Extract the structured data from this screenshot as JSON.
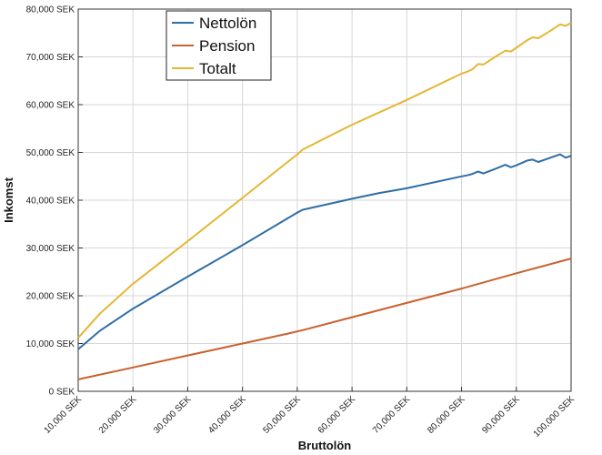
{
  "chart_data": {
    "type": "line",
    "title": "",
    "xlabel": "Bruttolön",
    "ylabel": "Inkomst",
    "xlim": [
      10000,
      100000
    ],
    "ylim": [
      0,
      80000
    ],
    "grid": true,
    "legend_position": "top-left",
    "x_ticks": [
      {
        "value": 10000,
        "label": "10,000 SEK"
      },
      {
        "value": 20000,
        "label": "20,000 SEK"
      },
      {
        "value": 30000,
        "label": "30,000 SEK"
      },
      {
        "value": 40000,
        "label": "40,000 SEK"
      },
      {
        "value": 50000,
        "label": "50,000 SEK"
      },
      {
        "value": 60000,
        "label": "60,000 SEK"
      },
      {
        "value": 70000,
        "label": "70,000 SEK"
      },
      {
        "value": 80000,
        "label": "80,000 SEK"
      },
      {
        "value": 90000,
        "label": "90,000 SEK"
      },
      {
        "value": 100000,
        "label": "100,000 SEK"
      }
    ],
    "y_ticks": [
      {
        "value": 0,
        "label": "0 SEK"
      },
      {
        "value": 10000,
        "label": "10,000 SEK"
      },
      {
        "value": 20000,
        "label": "20,000 SEK"
      },
      {
        "value": 30000,
        "label": "30,000 SEK"
      },
      {
        "value": 40000,
        "label": "40,000 SEK"
      },
      {
        "value": 50000,
        "label": "50,000 SEK"
      },
      {
        "value": 60000,
        "label": "60,000 SEK"
      },
      {
        "value": 70000,
        "label": "70,000 SEK"
      },
      {
        "value": 80000,
        "label": "80,000 SEK"
      }
    ],
    "series": [
      {
        "name": "Nettolön",
        "color": "#2f6ea5",
        "x": [
          10000,
          14000,
          20000,
          30000,
          40000,
          50000,
          51000,
          60000,
          65000,
          70000,
          80000,
          81000,
          82000,
          83000,
          84000,
          86000,
          88000,
          89000,
          90000,
          92000,
          93000,
          94000,
          96000,
          98000,
          99000,
          100000
        ],
        "y": [
          8800,
          12700,
          17300,
          24000,
          30600,
          37400,
          38000,
          40300,
          41500,
          42500,
          45000,
          45200,
          45500,
          46000,
          45600,
          46500,
          47400,
          46900,
          47300,
          48300,
          48500,
          48000,
          48800,
          49600,
          48900,
          49300
        ]
      },
      {
        "name": "Pension",
        "color": "#c9612d",
        "x": [
          10000,
          20000,
          30000,
          40000,
          48000,
          51000,
          60000,
          70000,
          80000,
          90000,
          100000
        ],
        "y": [
          2500,
          5000,
          7500,
          10000,
          12000,
          12800,
          15500,
          18500,
          21500,
          24700,
          27800
        ]
      },
      {
        "name": "Totalt",
        "color": "#e4b733",
        "x": [
          10000,
          14000,
          20000,
          30000,
          40000,
          50000,
          51000,
          60000,
          70000,
          80000,
          81000,
          82000,
          83000,
          84000,
          86000,
          88000,
          89000,
          90000,
          92000,
          93000,
          94000,
          96000,
          98000,
          99000,
          100000
        ],
        "y": [
          11200,
          16300,
          22500,
          31400,
          40500,
          49600,
          50600,
          55800,
          61000,
          66500,
          66900,
          67400,
          68500,
          68400,
          69900,
          71300,
          71100,
          71900,
          73500,
          74100,
          73900,
          75300,
          76800,
          76500,
          77100
        ]
      }
    ]
  }
}
